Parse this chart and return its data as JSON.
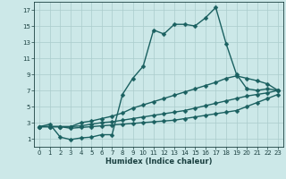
{
  "title": "",
  "xlabel": "Humidex (Indice chaleur)",
  "bg_color": "#cce8e8",
  "grid_color": "#aacccc",
  "line_color": "#1a6060",
  "xlim": [
    -0.5,
    23.5
  ],
  "ylim": [
    0,
    18
  ],
  "xticks": [
    0,
    1,
    2,
    3,
    4,
    5,
    6,
    7,
    8,
    9,
    10,
    11,
    12,
    13,
    14,
    15,
    16,
    17,
    18,
    19,
    20,
    21,
    22,
    23
  ],
  "yticks": [
    1,
    3,
    5,
    7,
    9,
    11,
    13,
    15,
    17
  ],
  "line1_x": [
    0,
    1,
    2,
    3,
    4,
    5,
    6,
    7,
    8,
    9,
    10,
    11,
    12,
    13,
    14,
    15,
    16,
    17,
    18,
    19,
    20,
    21,
    22,
    23
  ],
  "line1_y": [
    2.5,
    2.8,
    1.2,
    0.9,
    1.1,
    1.2,
    1.5,
    1.5,
    6.5,
    8.5,
    10.0,
    14.5,
    14.0,
    15.2,
    15.2,
    15.0,
    16.0,
    17.3,
    12.8,
    9.0,
    7.2,
    7.0,
    7.2,
    7.0
  ],
  "line2_x": [
    0,
    1,
    2,
    3,
    4,
    5,
    6,
    7,
    8,
    9,
    10,
    11,
    12,
    13,
    14,
    15,
    16,
    17,
    18,
    19,
    20,
    21,
    22,
    23
  ],
  "line2_y": [
    2.5,
    2.5,
    2.5,
    2.5,
    3.0,
    3.2,
    3.5,
    3.8,
    4.2,
    4.8,
    5.2,
    5.6,
    6.0,
    6.4,
    6.8,
    7.2,
    7.6,
    8.0,
    8.5,
    8.8,
    8.5,
    8.2,
    7.8,
    7.0
  ],
  "line3_x": [
    0,
    1,
    2,
    3,
    4,
    5,
    6,
    7,
    8,
    9,
    10,
    11,
    12,
    13,
    14,
    15,
    16,
    17,
    18,
    19,
    20,
    21,
    22,
    23
  ],
  "line3_y": [
    2.5,
    2.5,
    2.5,
    2.5,
    2.6,
    2.8,
    3.0,
    3.1,
    3.3,
    3.5,
    3.7,
    3.9,
    4.1,
    4.3,
    4.5,
    4.8,
    5.1,
    5.4,
    5.7,
    6.0,
    6.3,
    6.5,
    6.7,
    7.0
  ],
  "line4_x": [
    0,
    1,
    2,
    3,
    4,
    5,
    6,
    7,
    8,
    9,
    10,
    11,
    12,
    13,
    14,
    15,
    16,
    17,
    18,
    19,
    20,
    21,
    22,
    23
  ],
  "line4_y": [
    2.5,
    2.5,
    2.5,
    2.3,
    2.4,
    2.5,
    2.6,
    2.7,
    2.8,
    2.9,
    3.0,
    3.1,
    3.2,
    3.3,
    3.5,
    3.7,
    3.9,
    4.1,
    4.3,
    4.5,
    5.0,
    5.5,
    6.0,
    6.5
  ]
}
